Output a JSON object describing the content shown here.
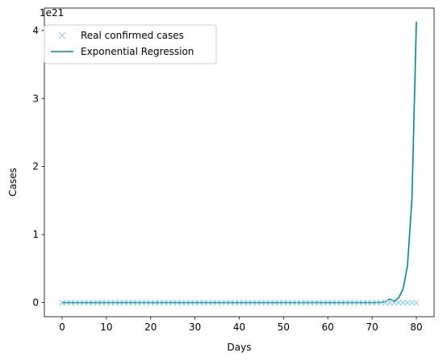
{
  "chart_data": {
    "type": "line",
    "title": "",
    "xlabel": "Days",
    "ylabel": "Cases",
    "y_offset_text": "1e21",
    "y_scale": 1e+21,
    "xlim": [
      -4,
      84
    ],
    "ylim": [
      -0.206,
      4.33
    ],
    "x_ticks": [
      0,
      10,
      20,
      30,
      40,
      50,
      60,
      70,
      80
    ],
    "y_ticks": [
      0,
      1,
      2,
      3,
      4
    ],
    "grid": false,
    "legend_position": "top-left",
    "series": [
      {
        "name": "Real confirmed cases",
        "style": "marker-x",
        "color": "#87ceeb",
        "x_start": 0,
        "x_end": 80,
        "x_step": 1,
        "values_scaled": 0
      },
      {
        "name": "Exponential Regression",
        "style": "line",
        "color": "#008b8b",
        "x": [
          0,
          70,
          71,
          72,
          73,
          74,
          75,
          76,
          77,
          78,
          79,
          80
        ],
        "y": [
          0,
          0.0003,
          0.0011,
          0.004,
          0.0146,
          0.0535,
          0.0196,
          0.0719,
          0.2,
          0.55,
          1.52,
          4.13
        ]
      }
    ]
  }
}
